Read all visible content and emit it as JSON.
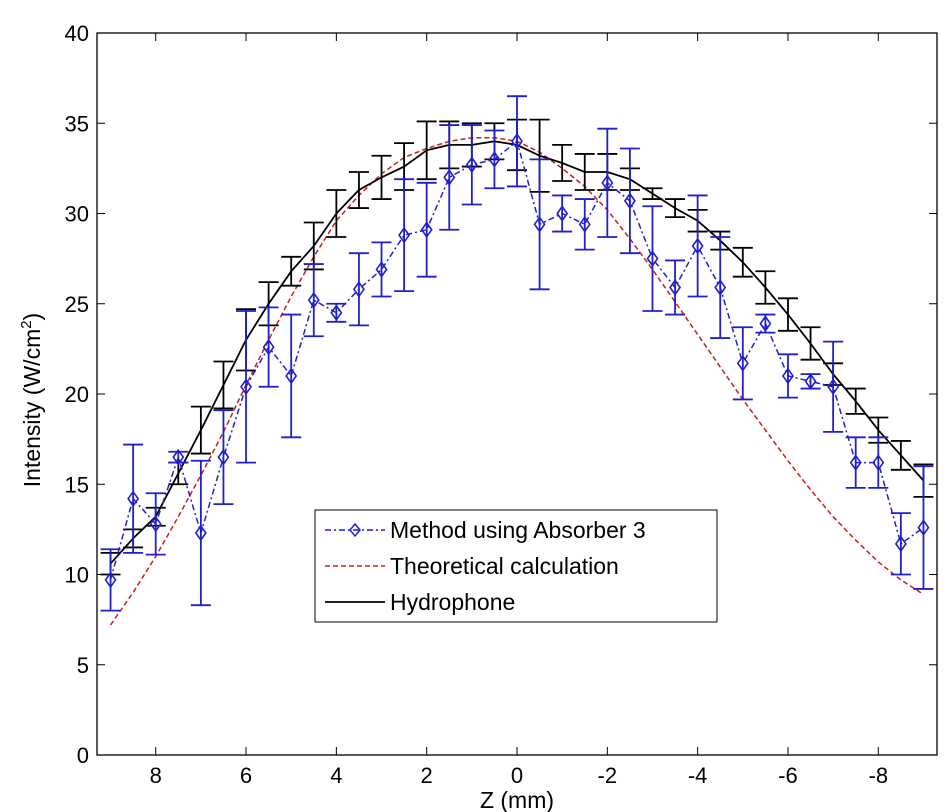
{
  "chart_data": {
    "type": "line",
    "xlabel": "Z (mm)",
    "ylabel": "Intensity (W/cm",
    "ylabel_superscript": "2",
    "ylabel_close": ")",
    "xlim": [
      9.3,
      -9.3
    ],
    "ylim": [
      0,
      40
    ],
    "xticks": [
      8,
      6,
      4,
      2,
      0,
      -2,
      -4,
      -6,
      -8
    ],
    "xtick_labels": [
      "8",
      "6",
      "4",
      "2",
      "0",
      "-2",
      "-4",
      "-6",
      "-8"
    ],
    "yticks": [
      0,
      5,
      10,
      15,
      20,
      25,
      30,
      35,
      40
    ],
    "ytick_labels": [
      "0",
      "5",
      "10",
      "15",
      "20",
      "25",
      "30",
      "35",
      "40"
    ],
    "grid": false,
    "legend_position": "lower-center",
    "series": [
      {
        "name": "Method using Absorber 3",
        "color": "#1f1fd0",
        "style": "dash-dot",
        "marker": "diamond",
        "x": [
          9,
          8.5,
          8,
          7.5,
          7,
          6.5,
          6,
          5.5,
          5,
          4.5,
          4,
          3.5,
          3,
          2.5,
          2,
          1.5,
          1,
          0.5,
          0,
          -0.5,
          -1,
          -1.5,
          -2,
          -2.5,
          -3,
          -3.5,
          -4,
          -4.5,
          -5,
          -5.5,
          -6,
          -6.5,
          -7,
          -7.5,
          -8,
          -8.5,
          -9
        ],
        "y": [
          9.7,
          14.2,
          12.8,
          16.5,
          12.3,
          16.5,
          20.4,
          22.6,
          21.0,
          25.2,
          24.5,
          25.8,
          26.9,
          28.8,
          29.1,
          32.0,
          32.7,
          33.0,
          34.0,
          29.4,
          30.0,
          29.4,
          31.7,
          30.7,
          27.5,
          25.9,
          28.2,
          25.9,
          21.7,
          23.9,
          21.0,
          20.7,
          20.4,
          16.2,
          16.2,
          11.7,
          12.6
        ],
        "err": [
          1.7,
          3.0,
          1.7,
          0.3,
          4.0,
          2.6,
          4.2,
          2.2,
          3.4,
          2.0,
          0.5,
          2.0,
          1.5,
          3.1,
          2.6,
          2.9,
          2.2,
          1.6,
          2.5,
          3.6,
          1.0,
          1.4,
          3.0,
          2.9,
          2.9,
          1.5,
          2.8,
          2.8,
          2.0,
          0.5,
          1.2,
          0.4,
          2.5,
          1.4,
          1.4,
          1.7,
          3.4
        ]
      },
      {
        "name": "Theoretical calculation",
        "color": "#c81e1e",
        "style": "dashed",
        "x": [
          9,
          8.5,
          8,
          7.5,
          7,
          6.5,
          6,
          5.5,
          5,
          4.5,
          4,
          3.5,
          3,
          2.5,
          2,
          1.5,
          1,
          0.5,
          0,
          -0.5,
          -1,
          -1.5,
          -2,
          -2.5,
          -3,
          -3.5,
          -4,
          -4.5,
          -5,
          -5.5,
          -6,
          -6.5,
          -7,
          -7.5,
          -8,
          -8.5,
          -9
        ],
        "y": [
          7.2,
          9.0,
          11.0,
          13.2,
          15.5,
          17.9,
          20.5,
          23.0,
          25.4,
          27.6,
          29.6,
          31.0,
          32.2,
          33.1,
          33.6,
          34.0,
          34.2,
          34.2,
          34.0,
          33.4,
          32.5,
          31.5,
          30.2,
          28.6,
          26.9,
          25.1,
          23.3,
          21.5,
          19.7,
          18.0,
          16.3,
          14.7,
          13.2,
          11.9,
          10.7,
          9.7,
          8.9
        ]
      },
      {
        "name": "Hydrophone",
        "color": "#000000",
        "style": "solid",
        "x": [
          9,
          8.5,
          8,
          7.5,
          7,
          6.5,
          6,
          5.5,
          5,
          4.5,
          4,
          3.5,
          3,
          2.5,
          2,
          1.5,
          1,
          0.5,
          0,
          -0.5,
          -1,
          -1.5,
          -2,
          -2.5,
          -3,
          -3.5,
          -4,
          -4.5,
          -5,
          -5.5,
          -6,
          -6.5,
          -7,
          -7.5,
          -8,
          -8.5,
          -9
        ],
        "y": [
          10.6,
          12.0,
          13.2,
          15.6,
          18.0,
          20.5,
          23.0,
          25.0,
          26.8,
          28.2,
          30.0,
          31.3,
          32.0,
          32.6,
          33.5,
          33.8,
          33.8,
          34.0,
          33.8,
          33.2,
          32.8,
          32.3,
          32.3,
          31.9,
          31.1,
          30.3,
          29.6,
          28.5,
          27.3,
          25.9,
          24.4,
          22.8,
          21.1,
          19.6,
          18.0,
          16.6,
          15.2
        ],
        "err": [
          0.6,
          0.5,
          0.5,
          0.6,
          1.3,
          1.3,
          1.7,
          1.2,
          0.8,
          1.3,
          1.3,
          1.0,
          1.2,
          1.3,
          1.6,
          1.3,
          1.2,
          1.0,
          1.4,
          2.0,
          1.0,
          1.0,
          1.0,
          0.6,
          0.3,
          0.5,
          0.6,
          0.5,
          0.8,
          0.9,
          0.9,
          0.9,
          0.6,
          0.7,
          0.7,
          0.8,
          0.9
        ]
      }
    ]
  }
}
